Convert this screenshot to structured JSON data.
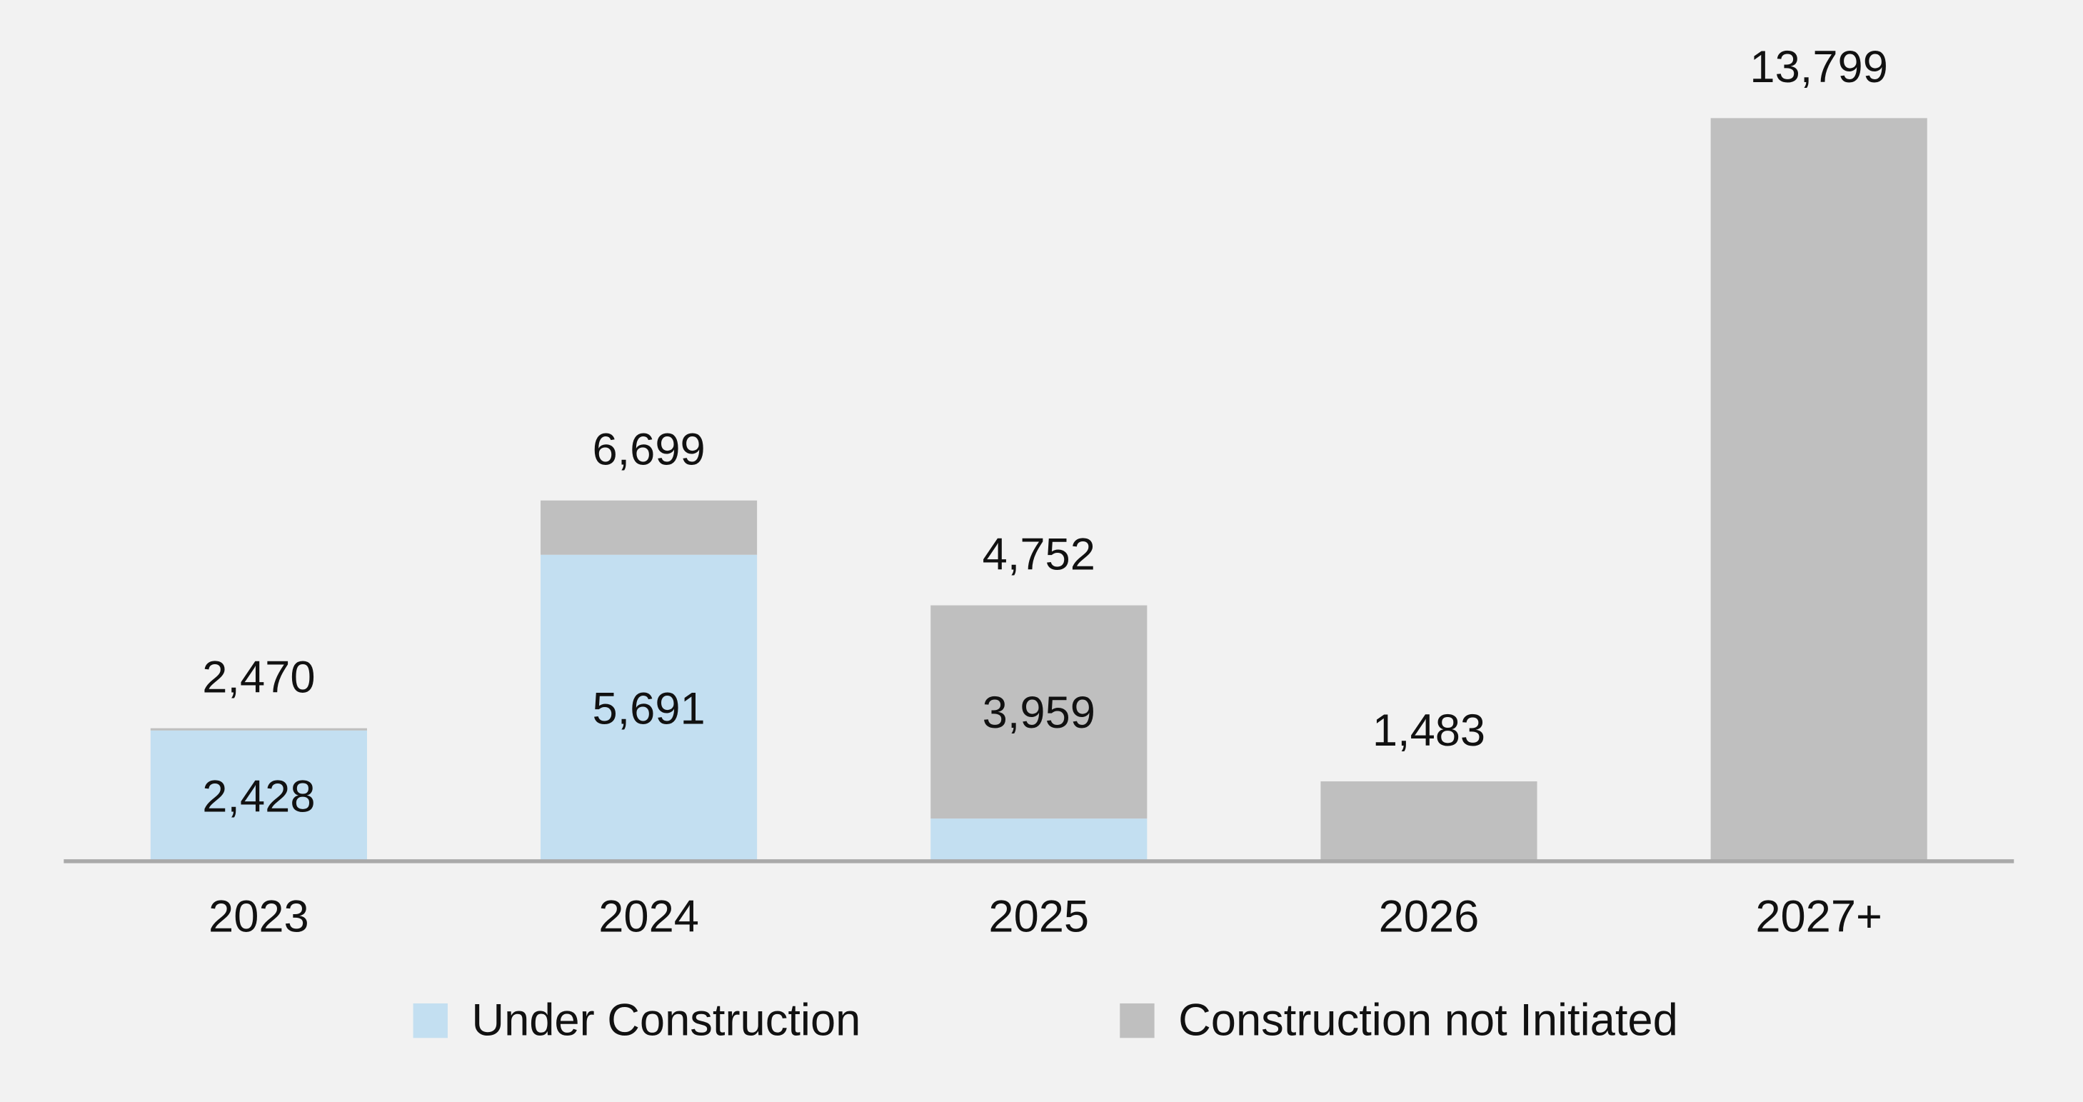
{
  "chart_data": {
    "type": "stacked_bar",
    "categories": [
      "2023",
      "2024",
      "2025",
      "2026",
      "2027+"
    ],
    "series": [
      {
        "name": "Under Construction",
        "color": "#c3dff1",
        "values": [
          2428,
          5691,
          793,
          0,
          0
        ],
        "value_labels": [
          "2,428",
          "5,691",
          null,
          null,
          null
        ]
      },
      {
        "name": "Construction not Initiated",
        "color": "#bfbfbf",
        "values": [
          42,
          1008,
          3959,
          1483,
          13799
        ],
        "value_labels": [
          null,
          null,
          "3,959",
          null,
          null
        ]
      }
    ],
    "totals": [
      2470,
      6699,
      4752,
      1483,
      13799
    ],
    "total_labels": [
      "2,470",
      "6,699",
      "4,752",
      "1,483",
      "13,799"
    ],
    "ylim": [
      0,
      15000
    ],
    "legend": "bottom"
  }
}
